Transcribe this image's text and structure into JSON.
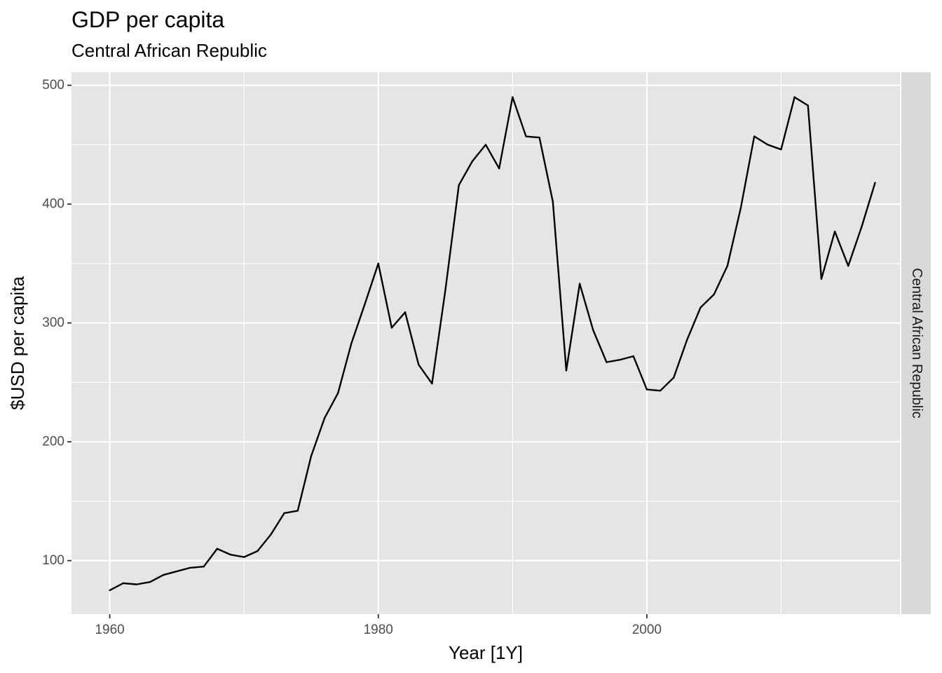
{
  "chart_data": {
    "type": "line",
    "title": "GDP per capita",
    "subtitle": "Central African Republic",
    "xlabel": "Year [1Y]",
    "ylabel": "$USD per capita",
    "facet_label": "Central African Republic",
    "xlim": [
      1957.15,
      2018.85
    ],
    "ylim": [
      55,
      511
    ],
    "x_ticks": [
      1960,
      1980,
      2000
    ],
    "y_ticks": [
      100,
      200,
      300,
      400,
      500
    ],
    "grid": true,
    "colors": {
      "panel": "#e5e5e5",
      "grid": "#ffffff",
      "strip": "#d9d9d9",
      "line": "#000000"
    },
    "series": [
      {
        "x": [
          1960,
          1961,
          1962,
          1963,
          1964,
          1965,
          1966,
          1967,
          1968,
          1969,
          1970,
          1971,
          1972,
          1973,
          1974,
          1975,
          1976,
          1977,
          1978,
          1979,
          1980,
          1981,
          1982,
          1983,
          1984,
          1985,
          1986,
          1987,
          1988,
          1989,
          1990,
          1991,
          1992,
          1993,
          1994,
          1995,
          1996,
          1997,
          1998,
          1999,
          2000,
          2001,
          2002,
          2003,
          2004,
          2005,
          2006,
          2007,
          2008,
          2009,
          2010,
          2011,
          2012,
          2013,
          2014,
          2015,
          2016,
          2017
        ],
        "values": [
          75,
          81,
          80,
          82,
          88,
          91,
          94,
          95,
          110,
          105,
          103,
          108,
          122,
          140,
          142,
          188,
          220,
          241,
          283,
          316,
          350,
          296,
          309,
          265,
          249,
          328,
          416,
          436,
          450,
          430,
          490,
          457,
          456,
          402,
          260,
          333,
          294,
          267,
          269,
          272,
          244,
          243,
          254,
          286,
          313,
          324,
          348,
          397,
          457,
          450,
          446,
          490,
          483,
          337,
          377,
          348,
          381,
          418
        ]
      }
    ]
  }
}
